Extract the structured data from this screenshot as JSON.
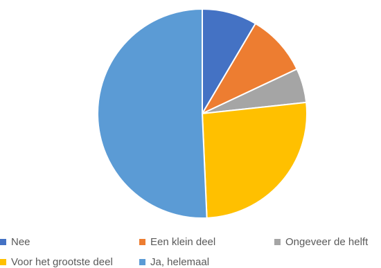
{
  "chart_data": {
    "type": "pie",
    "title": "",
    "categories": [
      "Nee",
      "Een klein deel",
      "Ongeveer de helft",
      "Voor het grootste deel",
      "Ja, helemaal"
    ],
    "values": [
      8.5,
      9.5,
      5.3,
      26,
      50.7
    ],
    "colors": [
      "#4472C4",
      "#ED7D31",
      "#A5A5A5",
      "#FFC000",
      "#5B9BD5"
    ],
    "start": "12 o'clock",
    "direction": "clockwise",
    "legend": "bottom"
  }
}
